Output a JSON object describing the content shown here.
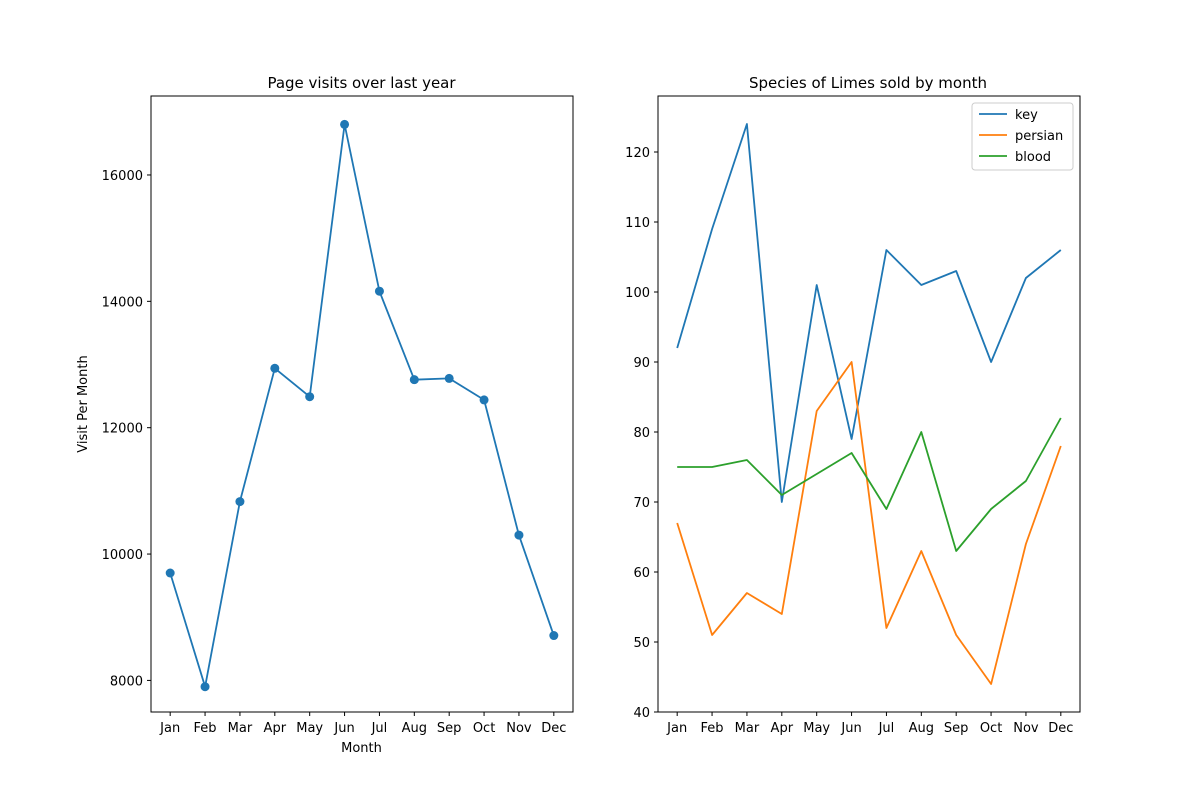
{
  "chart_data": [
    {
      "type": "line",
      "title": "Page visits over last year",
      "xlabel": "Month",
      "ylabel": "Visit Per Month",
      "categories": [
        "Jan",
        "Feb",
        "Mar",
        "Apr",
        "May",
        "Jun",
        "Jul",
        "Aug",
        "Sep",
        "Oct",
        "Nov",
        "Dec"
      ],
      "series": [
        {
          "values": [
            9700,
            7900,
            10830,
            12940,
            12490,
            16800,
            14160,
            12760,
            12780,
            12440,
            10300,
            8710
          ],
          "color": "#1f77b4",
          "markers": true
        }
      ],
      "yticks": [
        8000,
        10000,
        12000,
        14000,
        16000
      ],
      "ylim": [
        7500,
        17250
      ],
      "grid": false
    },
    {
      "type": "line",
      "title": "Species of Limes sold by month",
      "xlabel": "",
      "ylabel": "",
      "categories": [
        "Jan",
        "Feb",
        "Mar",
        "Apr",
        "May",
        "Jun",
        "Jul",
        "Aug",
        "Sep",
        "Oct",
        "Nov",
        "Dec"
      ],
      "series": [
        {
          "name": "key",
          "values": [
            92,
            109,
            124,
            70,
            101,
            79,
            106,
            101,
            103,
            90,
            102,
            106
          ],
          "color": "#1f77b4"
        },
        {
          "name": "persian",
          "values": [
            67,
            51,
            57,
            54,
            83,
            90,
            52,
            63,
            51,
            44,
            64,
            78
          ],
          "color": "#ff7f0e"
        },
        {
          "name": "blood",
          "values": [
            75,
            75,
            76,
            71,
            74,
            77,
            69,
            80,
            63,
            69,
            73,
            82
          ],
          "color": "#2ca02c"
        }
      ],
      "yticks": [
        40,
        50,
        60,
        70,
        80,
        90,
        100,
        110,
        120
      ],
      "ylim": [
        40,
        128
      ],
      "grid": false,
      "legend": "top-right"
    }
  ]
}
